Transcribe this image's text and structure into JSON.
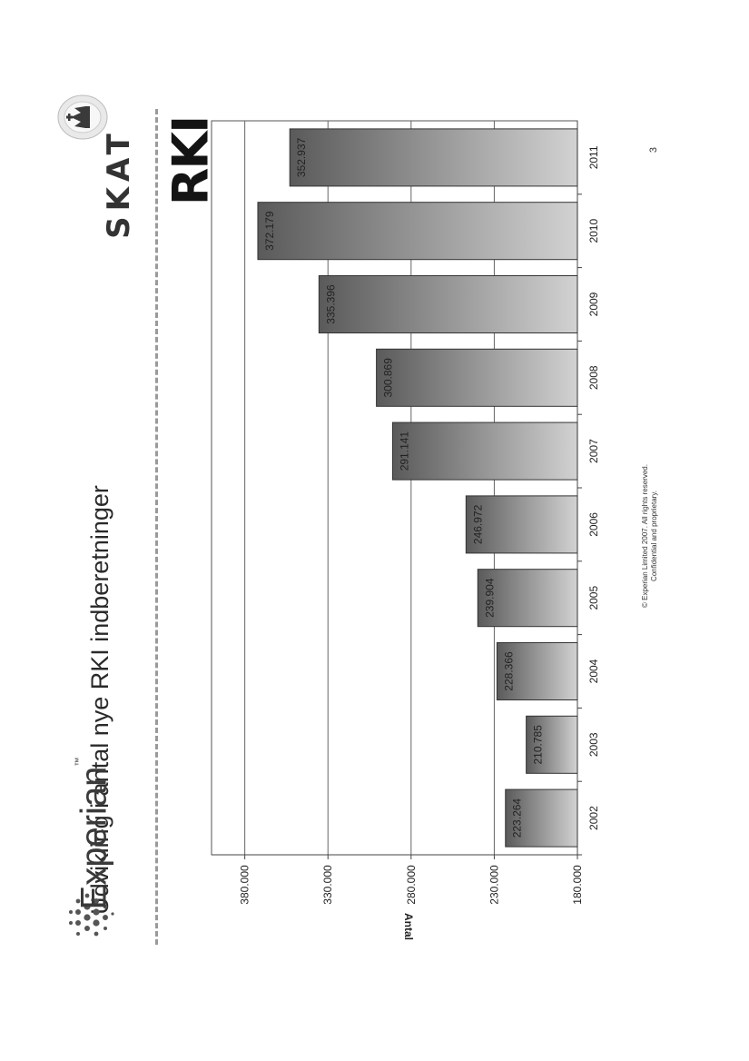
{
  "page": {
    "title": "Udvikling i antal nye RKI indberetninger",
    "skat_logo_text": "SKAT",
    "rki_logo_text": "RKI",
    "experian_logo_text": "Experian",
    "experian_tm": "™",
    "copyright_line1": "© Experian Limited 2007. All rights reserved.",
    "copyright_line2": "Confidential and proprietary.",
    "page_number": "3"
  },
  "chart_data": {
    "type": "bar",
    "orientation": "vertical",
    "categories": [
      "2002",
      "2003",
      "2004",
      "2005",
      "2006",
      "2007",
      "2008",
      "2009",
      "2010",
      "2011"
    ],
    "values": [
      223264,
      210785,
      228366,
      239904,
      246972,
      291141,
      300869,
      335396,
      372179,
      352937
    ],
    "data_labels": [
      "223.264",
      "210.785",
      "228.366",
      "239.904",
      "246.972",
      "291.141",
      "300.869",
      "335.396",
      "372.179",
      "352.937"
    ],
    "ylabel": "Antal",
    "ylim": [
      180000,
      400000
    ],
    "yticks": [
      "180.000",
      "230.000",
      "280.000",
      "330.000",
      "380.000"
    ],
    "ytick_values": [
      180000,
      230000,
      280000,
      330000,
      380000
    ],
    "grid": true,
    "legend": "none",
    "colors": {
      "bar_dark": "#5a5a5a",
      "bar_light": "#d2d2d2"
    }
  }
}
